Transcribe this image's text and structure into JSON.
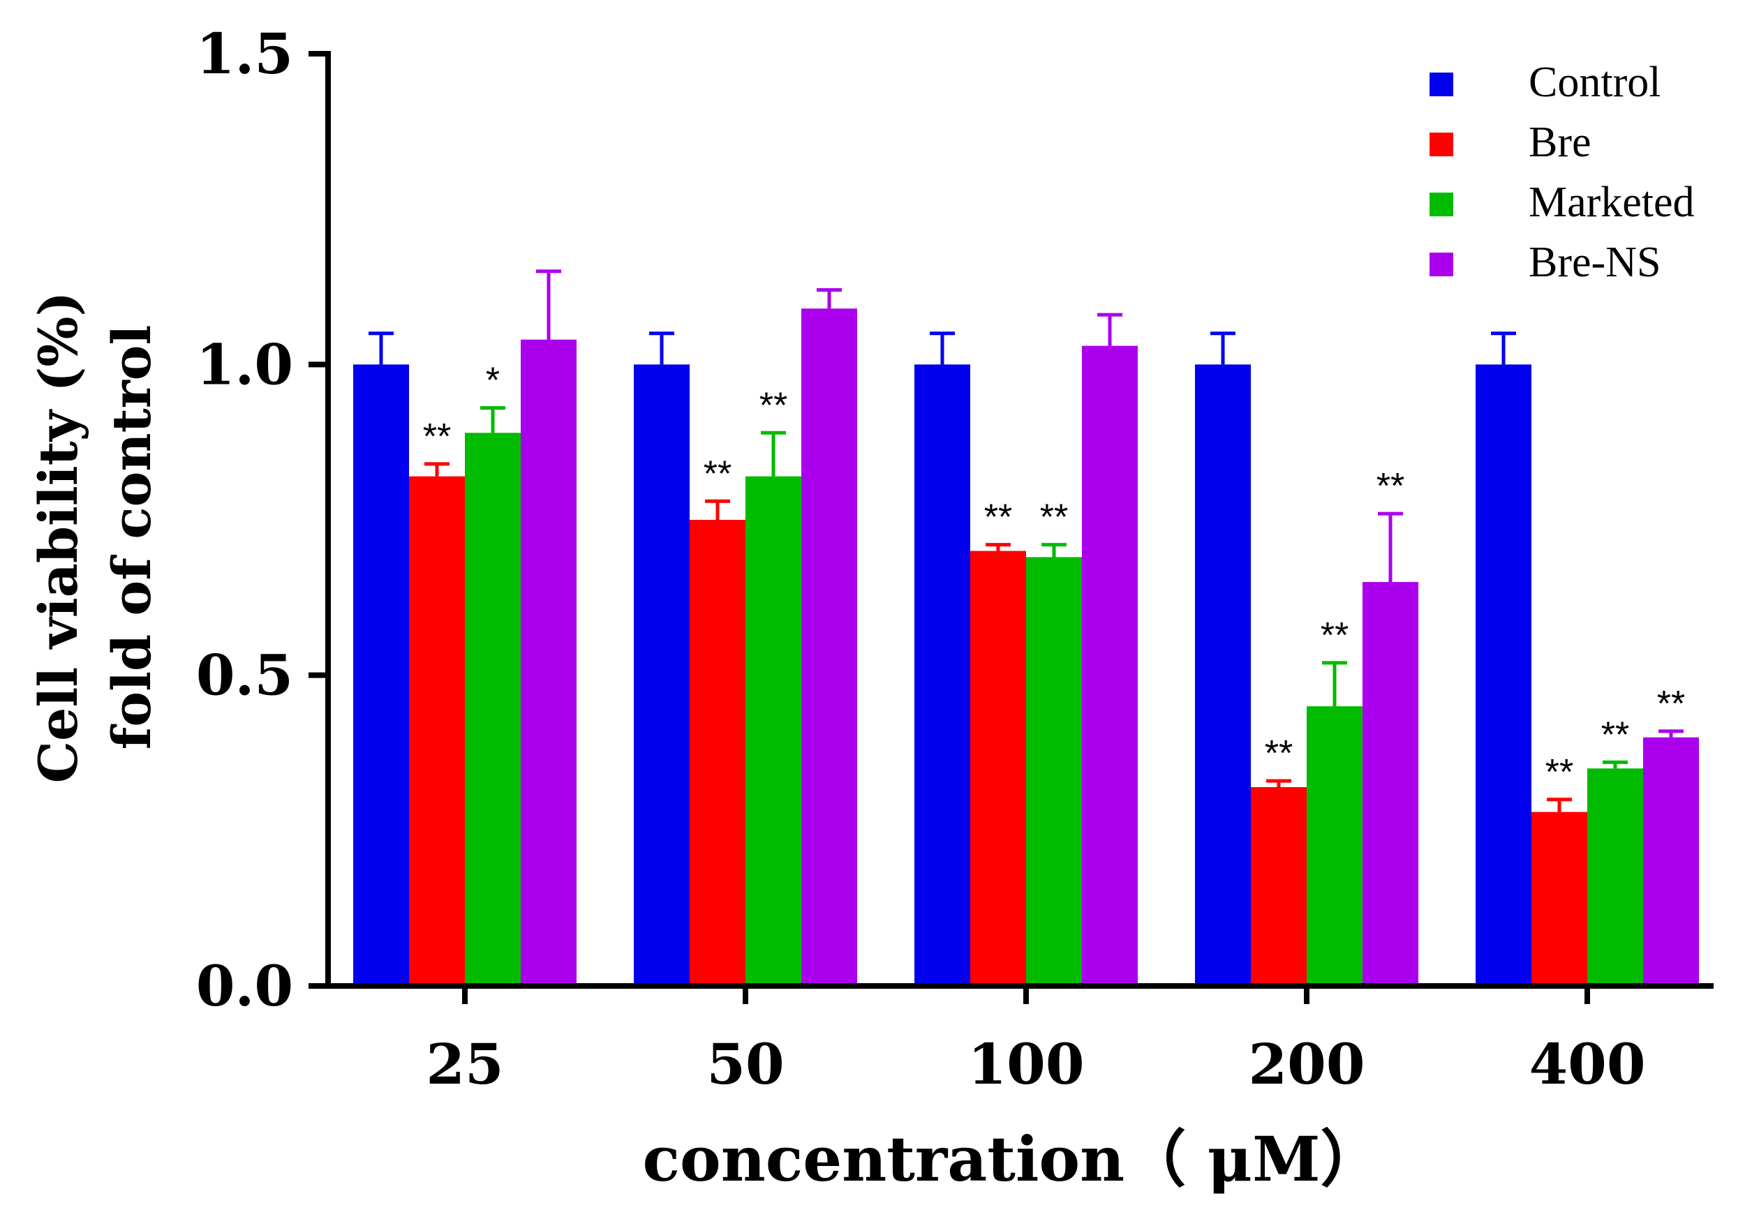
{
  "chart_data": {
    "type": "bar",
    "title": "",
    "xlabel": "concentration（ μM）",
    "ylabel_line1": "Cell viability (%)",
    "ylabel_line2": "fold of control",
    "ylim": [
      0,
      1.5
    ],
    "yticks": [
      "0.0",
      "0.5",
      "1.0",
      "1.5"
    ],
    "legend_position": "top-right",
    "categories": [
      "25",
      "50",
      "100",
      "200",
      "400"
    ],
    "series": [
      {
        "name": "Control",
        "color": "#0000ee",
        "values": [
          1.0,
          1.0,
          1.0,
          1.0,
          1.0
        ],
        "errors": [
          0.05,
          0.05,
          0.05,
          0.05,
          0.05
        ],
        "significance": [
          "",
          "",
          "",
          "",
          ""
        ]
      },
      {
        "name": "Bre",
        "color": "#ff0000",
        "values": [
          0.82,
          0.75,
          0.7,
          0.32,
          0.28
        ],
        "errors": [
          0.02,
          0.03,
          0.01,
          0.01,
          0.02
        ],
        "significance": [
          "**",
          "**",
          "**",
          "**",
          "**"
        ]
      },
      {
        "name": "Marketed",
        "color": "#00bb00",
        "values": [
          0.89,
          0.82,
          0.69,
          0.45,
          0.35
        ],
        "errors": [
          0.04,
          0.07,
          0.02,
          0.07,
          0.01
        ],
        "significance": [
          "*",
          "**",
          "**",
          "**",
          "**"
        ]
      },
      {
        "name": "Bre-NS",
        "color": "#aa00ee",
        "values": [
          1.04,
          1.09,
          1.03,
          0.65,
          0.4
        ],
        "errors": [
          0.11,
          0.03,
          0.05,
          0.11,
          0.01
        ],
        "significance": [
          "",
          "",
          "",
          "**",
          "**"
        ]
      }
    ]
  }
}
